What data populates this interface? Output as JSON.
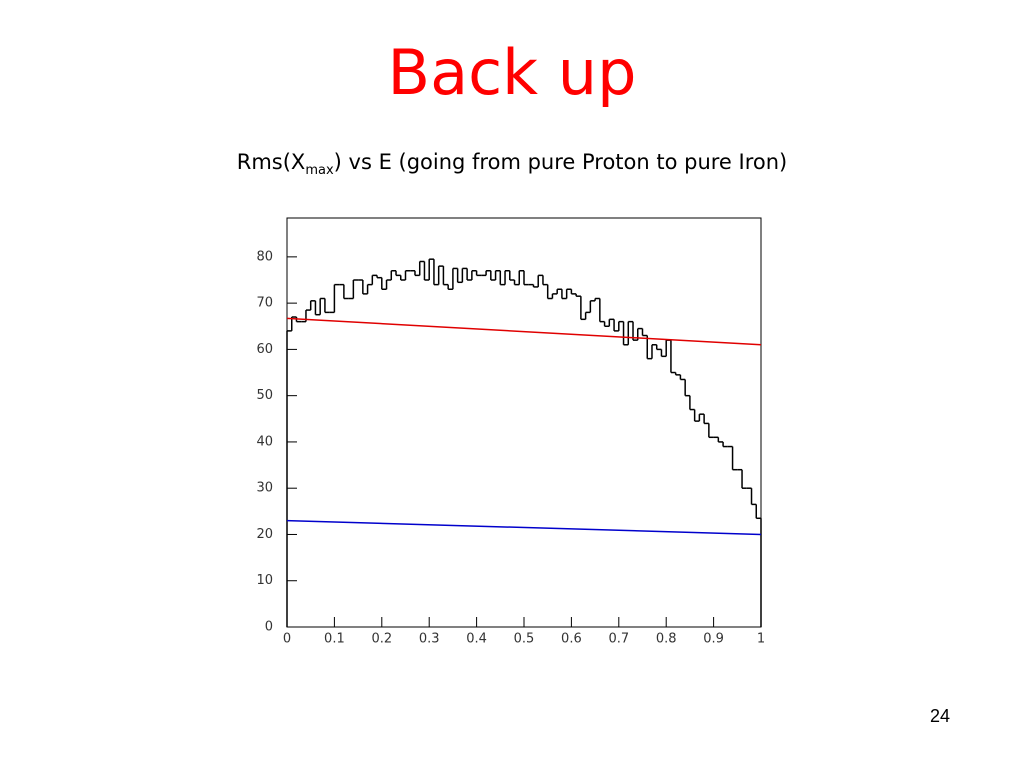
{
  "slide": {
    "title": "Back up",
    "subtitle": {
      "prefix": "Rms(X",
      "subscript": "max",
      "suffix": ") vs E (going from pure Proton to pure Iron)"
    },
    "page_number": "24"
  },
  "chart_data": {
    "type": "histogram",
    "color": "#000000",
    "bins": [
      0,
      0.01,
      0.02,
      0.03,
      0.04,
      0.05,
      0.06,
      0.07,
      0.08,
      0.09,
      0.1,
      0.11,
      0.12,
      0.13,
      0.14,
      0.15,
      0.16,
      0.17,
      0.18,
      0.19,
      0.2,
      0.21,
      0.22,
      0.23,
      0.24,
      0.25,
      0.26,
      0.27,
      0.28,
      0.29,
      0.3,
      0.31,
      0.32,
      0.33,
      0.34,
      0.35,
      0.36,
      0.37,
      0.38,
      0.39,
      0.4,
      0.41,
      0.42,
      0.43,
      0.44,
      0.45,
      0.46,
      0.47,
      0.48,
      0.49,
      0.5,
      0.51,
      0.52,
      0.53,
      0.54,
      0.55,
      0.56,
      0.57,
      0.58,
      0.59,
      0.6,
      0.61,
      0.62,
      0.63,
      0.64,
      0.65,
      0.66,
      0.67,
      0.68,
      0.69,
      0.7,
      0.71,
      0.72,
      0.73,
      0.74,
      0.75,
      0.76,
      0.77,
      0.78,
      0.79,
      0.8,
      0.81,
      0.82,
      0.83,
      0.84,
      0.85,
      0.86,
      0.87,
      0.88,
      0.89,
      0.9,
      0.91,
      0.92,
      0.93,
      0.94,
      0.95,
      0.96,
      0.97,
      0.98,
      0.99,
      1
    ],
    "values": [
      64,
      67,
      66,
      66,
      68.5,
      70.5,
      67.5,
      71,
      68,
      68,
      74,
      74,
      71,
      71,
      75,
      75,
      72,
      74,
      76,
      75.5,
      73,
      75,
      77,
      76,
      75,
      77,
      77,
      76,
      79,
      75,
      79.5,
      74,
      78,
      74,
      73,
      77.5,
      74.5,
      77.5,
      75,
      77,
      76,
      76,
      77,
      75,
      77,
      74,
      77,
      75,
      74,
      77,
      74,
      74,
      73.5,
      76,
      74,
      71,
      72,
      73,
      71,
      73,
      72,
      71.5,
      66.5,
      68,
      70.5,
      71,
      66,
      65,
      66.5,
      64,
      66,
      61,
      66,
      62,
      64.5,
      63,
      58,
      61,
      60,
      58.5,
      62,
      55,
      54.5,
      53.5,
      50,
      47,
      44.5,
      46,
      44,
      41,
      41,
      40,
      39,
      39,
      34,
      34,
      30,
      30,
      26.5,
      23.5
    ],
    "series": [
      {
        "color": "#e00000",
        "x": [
          0,
          1
        ],
        "values": [
          66.7,
          61
        ]
      },
      {
        "color": "#0000cc",
        "x": [
          0,
          1
        ],
        "values": [
          23,
          20
        ]
      }
    ],
    "xlim": [
      0,
      1
    ],
    "ylim": [
      0,
      88.4
    ],
    "xticks": [
      0,
      0.1,
      0.2,
      0.3,
      0.4,
      0.5,
      0.6,
      0.7,
      0.8,
      0.9,
      1
    ],
    "yticks": [
      0,
      10,
      20,
      30,
      40,
      50,
      60,
      70,
      80
    ]
  }
}
